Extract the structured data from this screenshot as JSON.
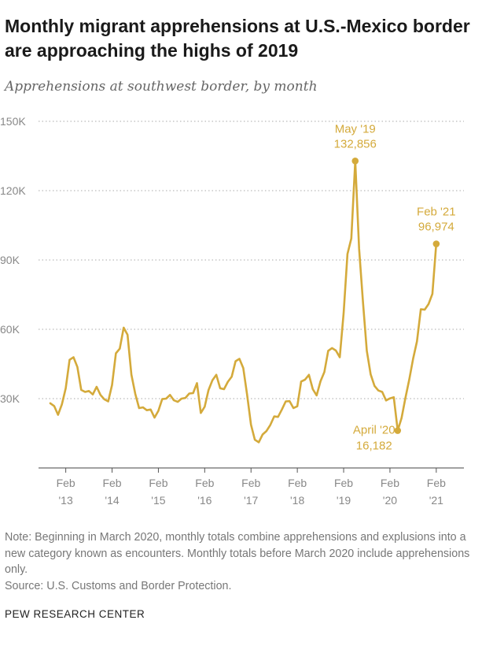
{
  "header": {
    "title": "Monthly migrant apprehensions at U.S.-Mexico border are approaching the highs of 2019",
    "subtitle": "Apprehensions at southwest border, by month"
  },
  "footer": {
    "note": "Note: Beginning in March 2020, monthly totals combine apprehensions and explusions into a new category known as encounters. Monthly totals before March 2020 include apprehensions only.",
    "source": "Source: U.S. Customs and Border Protection.",
    "brand": "PEW RESEARCH CENTER"
  },
  "colors": {
    "line": "#d4aa3b",
    "grid": "#bbbbbb",
    "tick": "#888888"
  },
  "chart_data": {
    "type": "line",
    "title": "",
    "xlabel": "",
    "ylabel": "",
    "ylim": [
      0,
      150000
    ],
    "yticks": [
      30000,
      60000,
      90000,
      120000,
      150000
    ],
    "ytick_labels": [
      "30K",
      "60K",
      "90K",
      "120K",
      "150K"
    ],
    "x_start": "2012-10",
    "xticks": [
      {
        "date": "2013-02",
        "line1": "Feb",
        "line2": "'13"
      },
      {
        "date": "2014-02",
        "line1": "Feb",
        "line2": "'14"
      },
      {
        "date": "2015-02",
        "line1": "Feb",
        "line2": "'15"
      },
      {
        "date": "2016-02",
        "line1": "Feb",
        "line2": "'16"
      },
      {
        "date": "2017-02",
        "line1": "Feb",
        "line2": "'17"
      },
      {
        "date": "2018-02",
        "line1": "Feb",
        "line2": "'18"
      },
      {
        "date": "2019-02",
        "line1": "Feb",
        "line2": "'19"
      },
      {
        "date": "2020-02",
        "line1": "Feb",
        "line2": "'20"
      },
      {
        "date": "2021-02",
        "line1": "Feb",
        "line2": "'21"
      }
    ],
    "grid": true,
    "series": [
      {
        "values": [
          28000,
          26800,
          23000,
          27500,
          34500,
          46800,
          47900,
          43700,
          33800,
          32900,
          33300,
          31800,
          35100,
          31600,
          29700,
          28800,
          35900,
          49600,
          51600,
          60700,
          57600,
          40400,
          32100,
          25900,
          26200,
          25000,
          25300,
          21800,
          24700,
          29800,
          30000,
          31600,
          29300,
          28600,
          30000,
          30300,
          32200,
          32400,
          36700,
          23800,
          26500,
          33700,
          37900,
          40300,
          34500,
          34100,
          37300,
          39500,
          46200,
          47200,
          43200,
          31600,
          18700,
          12200,
          11100,
          14500,
          16000,
          18600,
          22300,
          22100,
          25300,
          28800,
          28900,
          25900,
          26700,
          37400,
          38200,
          40300,
          34100,
          31400,
          37500,
          41500,
          50700,
          51900,
          50800,
          47900,
          66900,
          92600,
          99300,
          132856,
          94900,
          71900,
          50700,
          40500,
          35500,
          33500,
          32900,
          29200,
          30100,
          30600,
          16182,
          21600,
          30300,
          38300,
          47300,
          54800,
          68700,
          68500,
          70900,
          75300,
          96974
        ]
      }
    ],
    "annotations": [
      {
        "date": "2019-05",
        "value": 132856,
        "label1": "May '19",
        "label2": "132,856",
        "position": "above"
      },
      {
        "date": "2020-04",
        "value": 16182,
        "label1": "April '20",
        "label2": "16,182",
        "position": "below-left"
      },
      {
        "date": "2021-02",
        "value": 96974,
        "label1": "Feb '21",
        "label2": "96,974",
        "position": "above"
      }
    ]
  }
}
